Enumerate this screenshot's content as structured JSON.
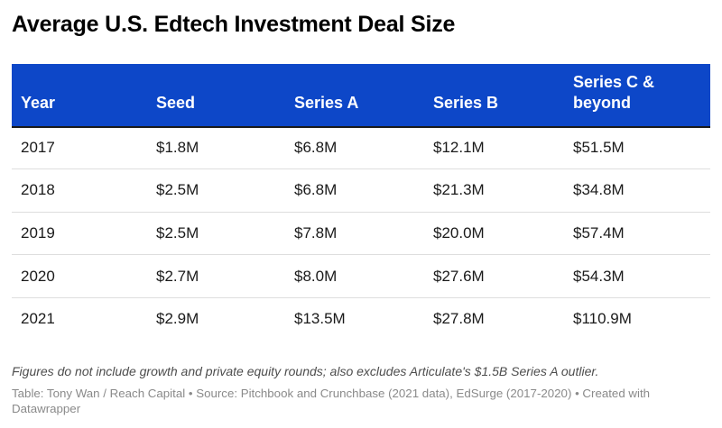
{
  "title": "Average U.S. Edtech Investment Deal Size",
  "chart_data": {
    "type": "table",
    "title": "Average U.S. Edtech Investment Deal Size",
    "columns": [
      "Year",
      "Seed",
      "Series A",
      "Series B",
      "Series C & beyond"
    ],
    "rows": [
      [
        "2017",
        "$1.8M",
        "$6.8M",
        "$12.1M",
        "$51.5M"
      ],
      [
        "2018",
        "$2.5M",
        "$6.8M",
        "$21.3M",
        "$34.8M"
      ],
      [
        "2019",
        "$2.5M",
        "$7.8M",
        "$20.0M",
        "$57.4M"
      ],
      [
        "2020",
        "$2.7M",
        "$8.0M",
        "$27.6M",
        "$54.3M"
      ],
      [
        "2021",
        "$2.9M",
        "$13.5M",
        "$27.8M",
        "$110.9M"
      ]
    ]
  },
  "note": "Figures do not include growth and private equity rounds; also excludes Articulate's $1.5B Series A outlier.",
  "source": "Table: Tony Wan / Reach Capital • Source: Pitchbook and Crunchbase (2021 data), EdSurge (2017-2020) • Created with Datawrapper",
  "colors": {
    "header_background": "#0d47c8",
    "header_text": "#ffffff"
  }
}
